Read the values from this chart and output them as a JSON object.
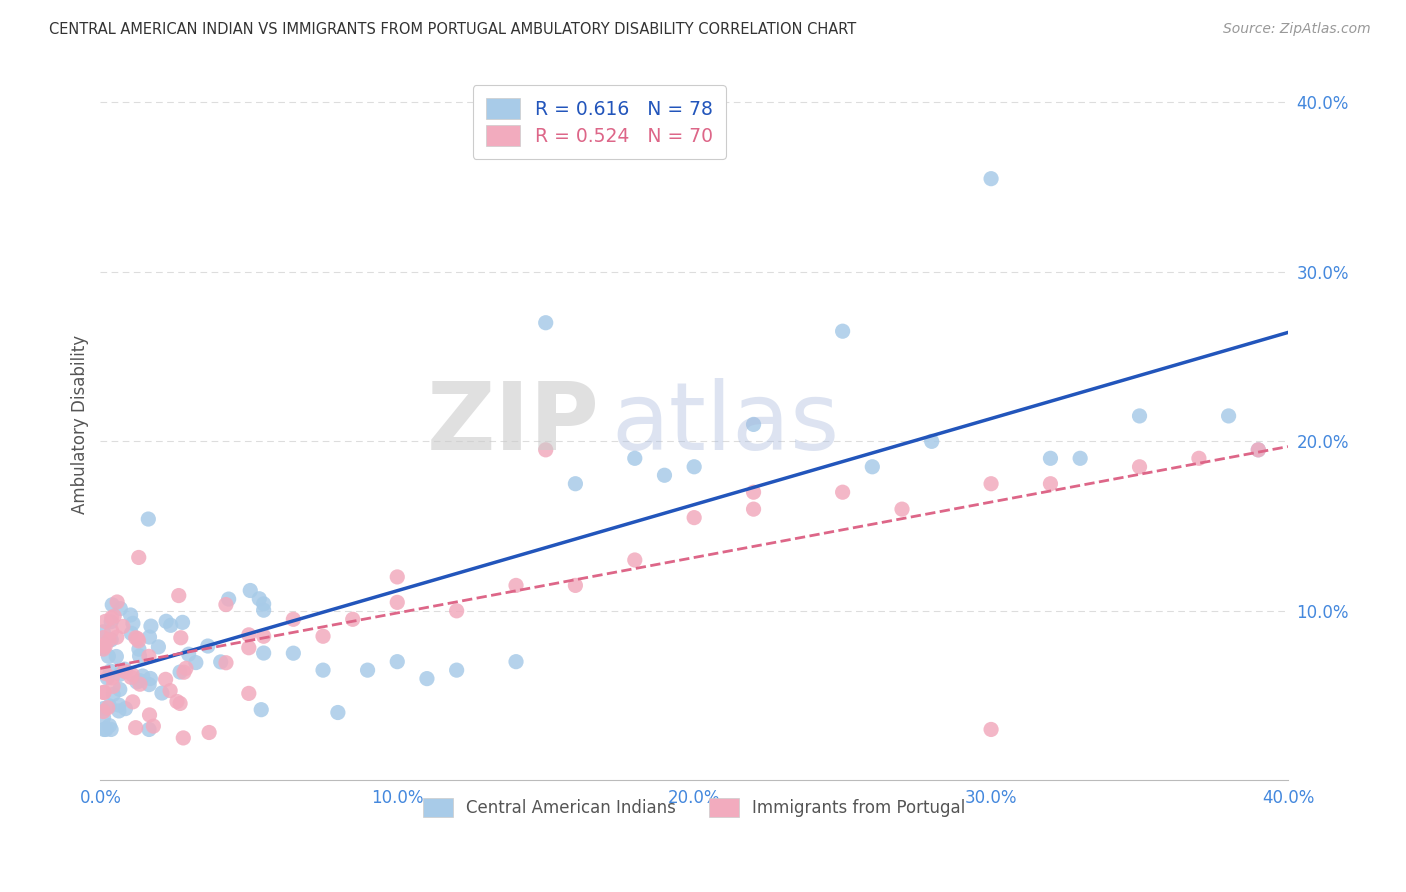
{
  "title": "CENTRAL AMERICAN INDIAN VS IMMIGRANTS FROM PORTUGAL AMBULATORY DISABILITY CORRELATION CHART",
  "source": "Source: ZipAtlas.com",
  "ylabel": "Ambulatory Disability",
  "xlim": [
    0.0,
    0.4
  ],
  "ylim": [
    0.0,
    0.42
  ],
  "x_ticks": [
    0.0,
    0.1,
    0.2,
    0.3,
    0.4
  ],
  "y_ticks": [
    0.1,
    0.2,
    0.3,
    0.4
  ],
  "x_tick_labels": [
    "0.0%",
    "10.0%",
    "20.0%",
    "30.0%",
    "40.0%"
  ],
  "y_tick_labels": [
    "10.0%",
    "20.0%",
    "30.0%",
    "40.0%"
  ],
  "watermark_zip": "ZIP",
  "watermark_atlas": "atlas",
  "series1_label": "Central American Indians",
  "series2_label": "Immigrants from Portugal",
  "series1_R": "0.616",
  "series1_N": "78",
  "series2_R": "0.524",
  "series2_N": "70",
  "series1_color": "#A8CBE8",
  "series2_color": "#F2ABBE",
  "series1_edge_color": "none",
  "series2_edge_color": "none",
  "series1_line_color": "#2255BB",
  "series2_line_color": "#DD6688",
  "background_color": "#FFFFFF",
  "grid_color": "#DDDDDD",
  "tick_color": "#4488DD",
  "title_color": "#333333",
  "ylabel_color": "#555555",
  "source_color": "#999999",
  "legend_text_color1": "#2255BB",
  "legend_text_color2": "#DD6688",
  "bottom_legend_color": "#555555"
}
